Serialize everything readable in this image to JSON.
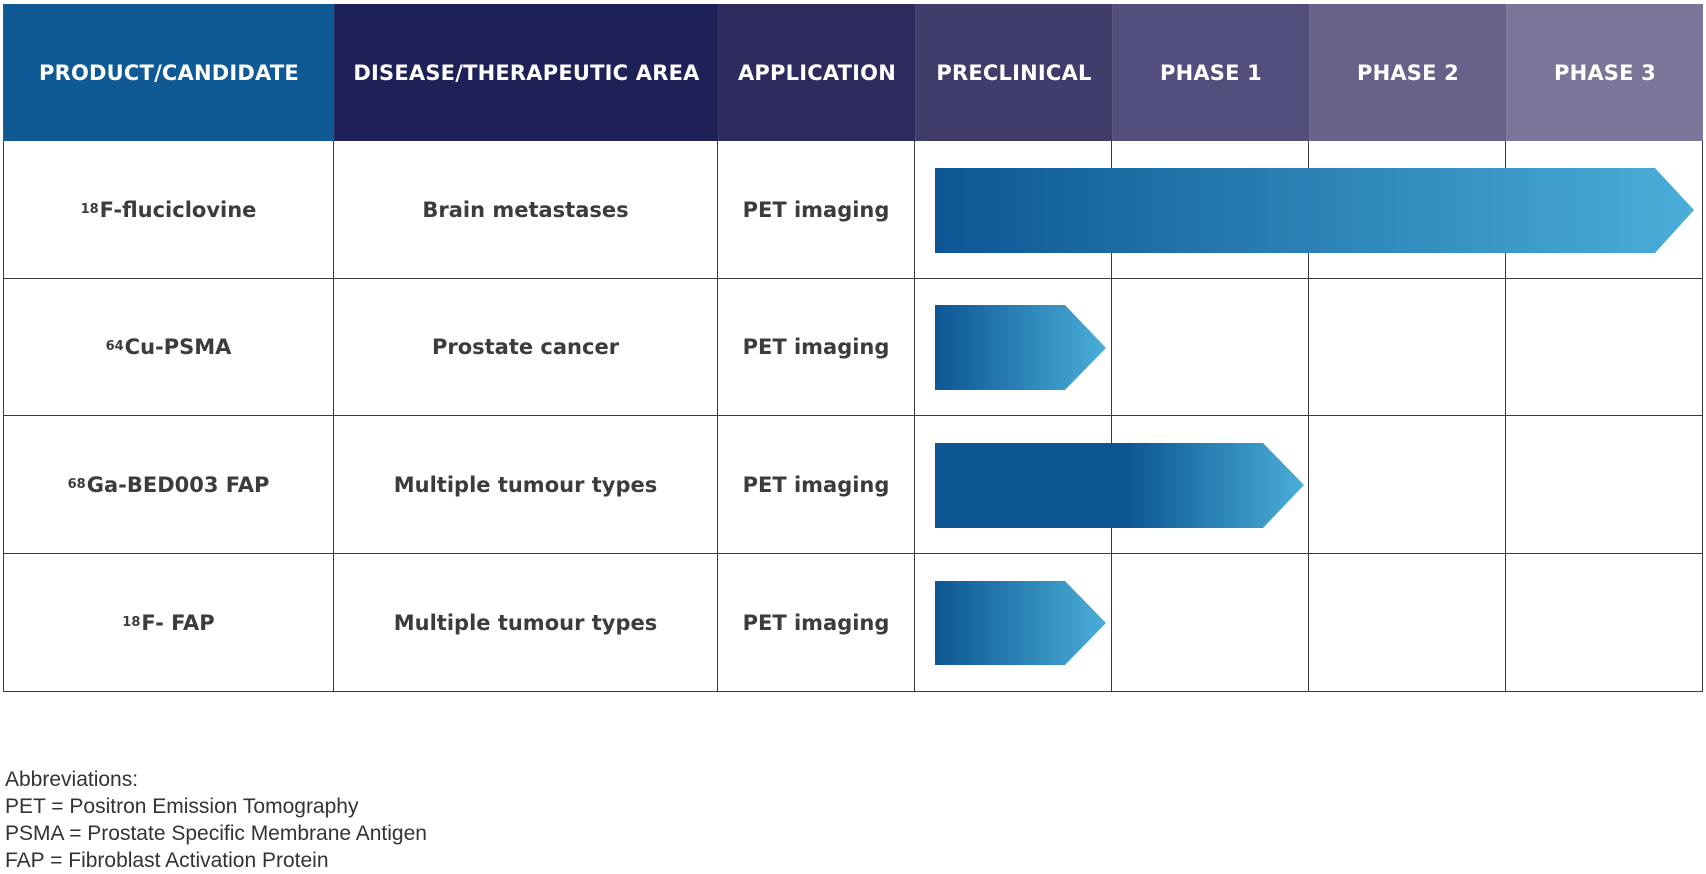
{
  "header": {
    "columns": [
      {
        "label": "PRODUCT/CANDIDATE",
        "color": "#0f5a94"
      },
      {
        "label": "DISEASE/THERAPEUTIC AREA",
        "color": "#1e2157"
      },
      {
        "label": "APPLICATION",
        "color": "#2d2b5e"
      },
      {
        "label": "PRECLINICAL",
        "color": "#413d6b"
      },
      {
        "label": "PHASE 1",
        "color": "#534f7c"
      },
      {
        "label": "PHASE 2",
        "color": "#666289"
      },
      {
        "label": "PHASE 3",
        "color": "#7a7599"
      }
    ]
  },
  "rows": [
    {
      "product_sup": "18",
      "product": "F-fluciclovine",
      "disease": "Brain metastases",
      "application": "PET imaging",
      "stage": "Phase 3"
    },
    {
      "product_sup": "64",
      "product": "Cu-PSMA",
      "disease": "Prostate cancer",
      "application": "PET imaging",
      "stage": "Preclinical"
    },
    {
      "product_sup": "68",
      "product": "Ga-BED003 FAP",
      "disease": "Multiple tumour types",
      "application": "PET imaging",
      "stage": "Phase 1"
    },
    {
      "product_sup": "18",
      "product": "F- FAP",
      "disease": "Multiple tumour types",
      "application": "PET imaging",
      "stage": "Preclinical"
    }
  ],
  "colors": {
    "arrow_dark": "#0d5693",
    "arrow_light": "#4aaed8"
  },
  "footnotes": {
    "title": "Abbreviations:",
    "items": [
      "PET = Positron Emission Tomography",
      "PSMA = Prostate Specific Membrane Antigen",
      "FAP = Fibroblast Activation Protein"
    ]
  }
}
